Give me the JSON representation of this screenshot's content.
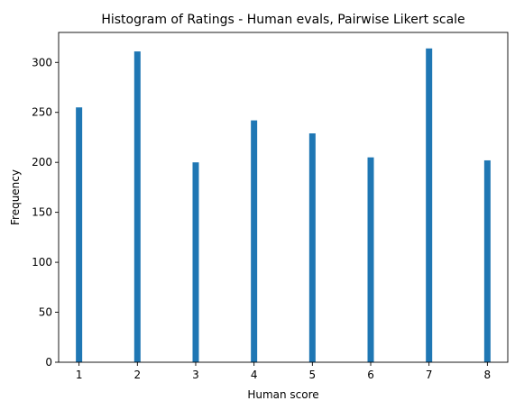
{
  "chart_data": {
    "type": "bar",
    "title": "Histogram of Ratings - Human evals, Pairwise Likert scale",
    "xlabel": "Human score",
    "ylabel": "Frequency",
    "x": [
      1,
      2,
      3,
      4,
      5,
      6,
      7,
      8
    ],
    "values": [
      255,
      311,
      200,
      242,
      229,
      205,
      314,
      202
    ],
    "xlim": [
      0.65,
      8.35
    ],
    "ylim": [
      0,
      330
    ],
    "xticks": [
      1,
      2,
      3,
      4,
      5,
      6,
      7,
      8
    ],
    "yticks": [
      0,
      50,
      100,
      150,
      200,
      250,
      300
    ],
    "bar_color": "#1f77b4",
    "grid": false,
    "legend": "none"
  }
}
